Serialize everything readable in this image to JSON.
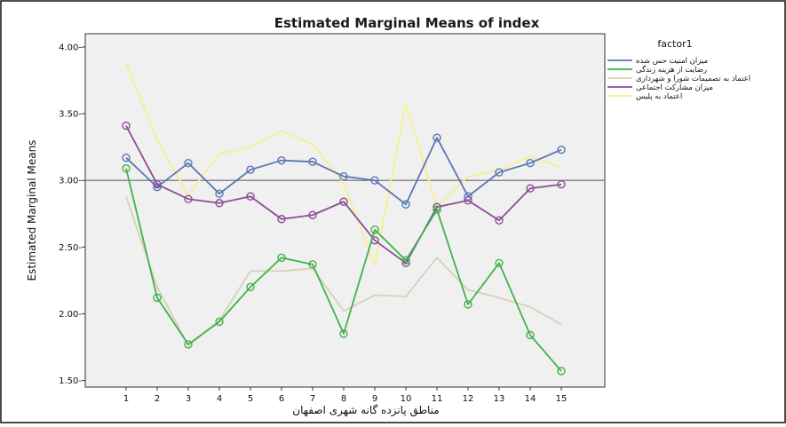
{
  "chart_data": {
    "type": "line",
    "title": "Estimated Marginal Means of index",
    "xlabel": "مناطق پانزده گانه شهری اصفهان",
    "ylabel": "Estimated Marginal Means",
    "x": [
      1,
      2,
      3,
      4,
      5,
      6,
      7,
      8,
      9,
      10,
      11,
      12,
      13,
      14,
      15
    ],
    "x_tick_labels": [
      "1",
      "2",
      "3",
      "4",
      "5",
      "6",
      "7",
      "8",
      "9",
      "10",
      "11",
      "12",
      "13",
      "14",
      "15"
    ],
    "ylim": [
      1.45,
      4.1
    ],
    "y_ticks": [
      1.5,
      2.0,
      2.5,
      3.0,
      3.5,
      4.0
    ],
    "y_tick_labels": [
      "1.50-",
      "2.00-",
      "2.50-",
      "3.00-",
      "3.50-",
      "4.00-"
    ],
    "reference_line": 3.0,
    "grid": false,
    "legend": {
      "title": "factor1",
      "placement": "top-right"
    },
    "series": [
      {
        "name": "میزان امنیت حس شده",
        "color": "#5a76b5",
        "marker": "circle",
        "values": [
          3.17,
          2.95,
          3.13,
          2.9,
          3.08,
          3.15,
          3.14,
          3.03,
          3.0,
          2.82,
          3.32,
          2.88,
          3.06,
          3.13,
          3.23
        ]
      },
      {
        "name": "رضایت از هزینه زندگی",
        "color": "#41b24b",
        "marker": "circle",
        "values": [
          3.09,
          2.12,
          1.77,
          1.94,
          2.2,
          2.42,
          2.37,
          1.85,
          2.63,
          2.4,
          2.78,
          2.07,
          2.38,
          1.84,
          1.57
        ]
      },
      {
        "name": "اعتماد به تصمیمات شورا و شهرداری",
        "color": "#d7d1b8",
        "marker": "none",
        "values": [
          2.88,
          2.2,
          1.76,
          1.95,
          2.32,
          2.32,
          2.34,
          2.02,
          2.14,
          2.13,
          2.42,
          2.18,
          2.12,
          2.05,
          1.92
        ]
      },
      {
        "name": "میزان مشارکت اجتماعی",
        "color": "#8c4c96",
        "marker": "circle",
        "values": [
          3.41,
          2.97,
          2.86,
          2.83,
          2.88,
          2.71,
          2.74,
          2.84,
          2.55,
          2.38,
          2.8,
          2.85,
          2.7,
          2.94,
          2.97
        ]
      },
      {
        "name": "اعتماد به پلیس",
        "color": "#f6f08f",
        "marker": "none",
        "values": [
          3.88,
          3.3,
          2.89,
          3.2,
          3.25,
          3.37,
          3.27,
          2.98,
          2.36,
          3.58,
          2.8,
          3.03,
          3.08,
          3.18,
          3.1
        ]
      }
    ]
  }
}
